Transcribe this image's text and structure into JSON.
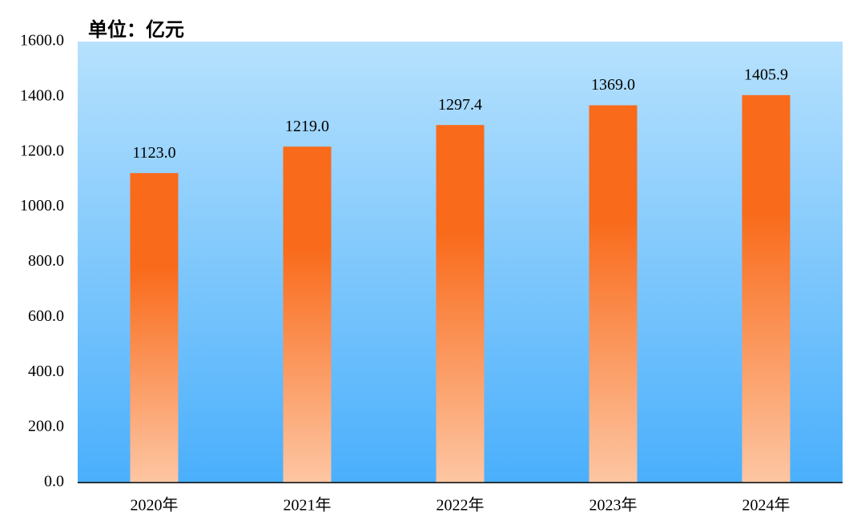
{
  "chart_data": {
    "type": "bar",
    "title": "单位：亿元",
    "categories": [
      "2020年",
      "2021年",
      "2022年",
      "2023年",
      "2024年"
    ],
    "values": [
      1123.0,
      1219.0,
      1297.4,
      1369.0,
      1405.9
    ],
    "value_labels": [
      "1123.0",
      "1219.0",
      "1297.4",
      "1369.0",
      "1405.9"
    ],
    "color": "#f96a1a",
    "ylim": [
      0,
      1600
    ],
    "yticks": [
      {
        "value": 0,
        "label": "0.0"
      },
      {
        "value": 200,
        "label": "200.0"
      },
      {
        "value": 400,
        "label": "400.0"
      },
      {
        "value": 600,
        "label": "600.0"
      },
      {
        "value": 800,
        "label": "800.0"
      },
      {
        "value": 1000,
        "label": "1000.0"
      },
      {
        "value": 1200,
        "label": "1200.0"
      },
      {
        "value": 1400,
        "label": "1400.0"
      },
      {
        "value": 1600,
        "label": "1600.0"
      }
    ],
    "grid": false
  }
}
